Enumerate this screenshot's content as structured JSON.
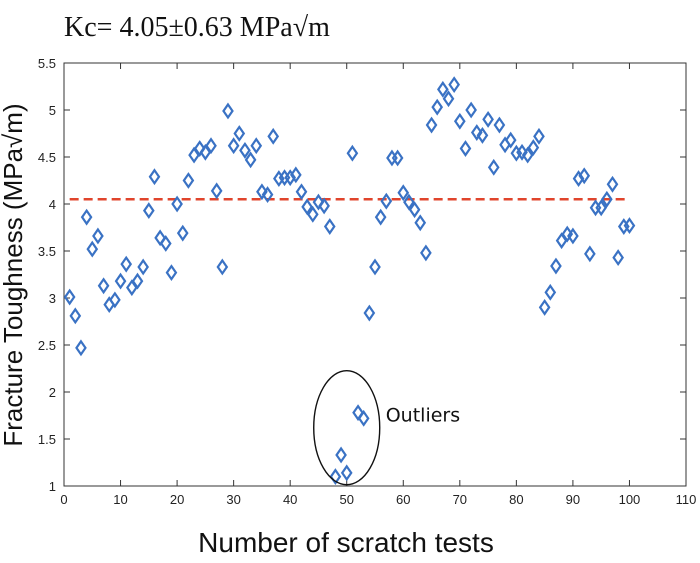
{
  "chart_data": {
    "type": "scatter",
    "title": "Kc= 4.05±0.63  MPa√m",
    "xlabel": "Number of scratch tests",
    "ylabel": "Fracture Toughness  (MPa√m)",
    "xlim": [
      0,
      110
    ],
    "ylim": [
      1,
      5.5
    ],
    "xticks": [
      0,
      10,
      20,
      30,
      40,
      50,
      60,
      70,
      80,
      90,
      100,
      110
    ],
    "yticks": [
      1,
      1.5,
      2,
      2.5,
      3,
      3.5,
      4,
      4.5,
      5,
      5.5
    ],
    "grid": false,
    "marker": "diamond-open",
    "marker_color": "#3a72c4",
    "reference_line": {
      "y": 4.05,
      "x_range": [
        1,
        100
      ],
      "style": "dashed",
      "color": "#e0442c"
    },
    "annotation": {
      "text": "Outliers",
      "center_x": 50,
      "center_y": 1.62
    },
    "series": [
      {
        "x": [
          1,
          2,
          3,
          4,
          5,
          6,
          7,
          8,
          9,
          10,
          11,
          12,
          13,
          14,
          15,
          16,
          17,
          18,
          19,
          20,
          21,
          22,
          23,
          24,
          25,
          26,
          27,
          28,
          29,
          30,
          31,
          32,
          33,
          34,
          35,
          36,
          37,
          38,
          39,
          40,
          41,
          42,
          43,
          44,
          45,
          46,
          47,
          48,
          49,
          50,
          51,
          52,
          53,
          54,
          55,
          56,
          57,
          58,
          59,
          60,
          61,
          62,
          63,
          64,
          65,
          66,
          67,
          68,
          69,
          70,
          71,
          72,
          73,
          74,
          75,
          76,
          77,
          78,
          79,
          80,
          81,
          82,
          83,
          84,
          85,
          86,
          87,
          88,
          89,
          90,
          91,
          92,
          93,
          94,
          95,
          96,
          97,
          98,
          99,
          100
        ],
        "y": [
          3.01,
          2.81,
          2.47,
          3.86,
          3.52,
          3.66,
          3.13,
          2.93,
          2.98,
          3.18,
          3.36,
          3.11,
          3.18,
          3.33,
          3.93,
          4.29,
          3.64,
          3.58,
          3.27,
          4.0,
          3.69,
          4.25,
          4.52,
          4.59,
          4.55,
          4.62,
          4.14,
          3.33,
          4.99,
          4.62,
          4.75,
          4.57,
          4.47,
          4.62,
          4.13,
          4.1,
          4.72,
          4.27,
          4.28,
          4.28,
          4.31,
          4.13,
          3.97,
          3.89,
          4.02,
          3.98,
          3.76,
          1.1,
          1.33,
          1.14,
          4.54,
          1.78,
          1.72,
          2.84,
          3.33,
          3.86,
          4.03,
          4.49,
          4.49,
          4.12,
          4.02,
          3.94,
          3.8,
          3.48,
          4.84,
          5.03,
          5.22,
          5.12,
          5.27,
          4.88,
          4.59,
          5.0,
          4.76,
          4.73,
          4.9,
          4.39,
          4.84,
          4.63,
          4.68,
          4.54,
          4.55,
          4.52,
          4.6,
          4.72,
          2.9,
          3.06,
          3.34,
          3.61,
          3.68,
          3.66,
          4.27,
          4.3,
          3.47,
          3.96,
          3.96,
          4.05,
          4.21,
          3.43,
          3.76,
          3.77
        ]
      }
    ]
  }
}
